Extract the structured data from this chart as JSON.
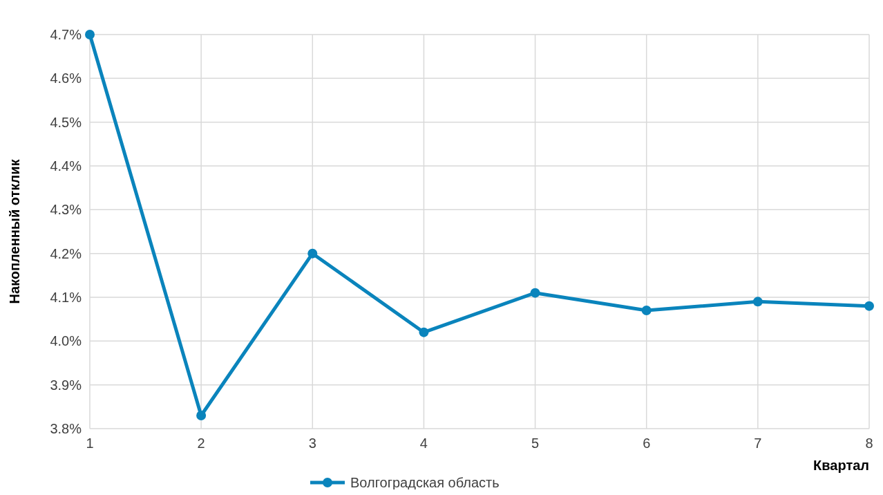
{
  "chart_data": {
    "type": "line",
    "xlabel": "Квартал",
    "ylabel": "Накопленный отклик",
    "x": [
      1,
      2,
      3,
      4,
      5,
      6,
      7,
      8
    ],
    "series": [
      {
        "name": "Волгоградская область",
        "color": "#0a84bc",
        "values": [
          4.7,
          3.83,
          4.2,
          4.02,
          4.11,
          4.07,
          4.09,
          4.08
        ]
      }
    ],
    "xlim": [
      1,
      8
    ],
    "xticks": [
      1,
      2,
      3,
      4,
      5,
      6,
      7,
      8
    ],
    "ylim": [
      3.8,
      4.7
    ],
    "yticks": [
      {
        "value": 3.8,
        "label": "3.8%"
      },
      {
        "value": 3.9,
        "label": "3.9%"
      },
      {
        "value": 4.0,
        "label": "4.0%"
      },
      {
        "value": 4.1,
        "label": "4.1%"
      },
      {
        "value": 4.2,
        "label": "4.2%"
      },
      {
        "value": 4.3,
        "label": "4.3%"
      },
      {
        "value": 4.4,
        "label": "4.4%"
      },
      {
        "value": 4.5,
        "label": "4.5%"
      },
      {
        "value": 4.6,
        "label": "4.6%"
      },
      {
        "value": 4.7,
        "label": "4.7%"
      }
    ],
    "grid": true,
    "legend": "bottom",
    "marker": "circle",
    "line_style": "solid"
  }
}
